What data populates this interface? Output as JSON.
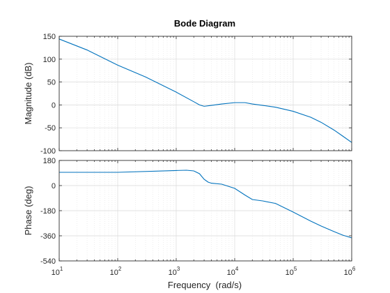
{
  "chart_data": {
    "type": "line",
    "title": "Bode Diagram",
    "xlabel": "Frequency  (rad/s)",
    "xscale": "log",
    "xlim": [
      10,
      1000000
    ],
    "xticks": [
      {
        "base": "10",
        "exp": "1"
      },
      {
        "base": "10",
        "exp": "2"
      },
      {
        "base": "10",
        "exp": "3"
      },
      {
        "base": "10",
        "exp": "4"
      },
      {
        "base": "10",
        "exp": "5"
      },
      {
        "base": "10",
        "exp": "6"
      }
    ],
    "grid": true,
    "subplots": [
      {
        "name": "magnitude",
        "ylabel": "Magnitude (dB)",
        "ylim": [
          -100,
          150
        ],
        "yticks": [
          150,
          100,
          50,
          0,
          -50,
          -100
        ],
        "series": [
          {
            "color": "#0072bd",
            "x": [
              10,
              30,
              100,
              300,
              1000,
              2000,
              2500,
              3000,
              4000,
              6000,
              10000,
              15000,
              20000,
              30000,
              50000,
              100000,
              200000,
              300000,
              500000,
              700000,
              1000000
            ],
            "y": [
              144,
              120,
              87,
              61,
              28,
              7,
              0,
              -3,
              -1,
              2,
              5,
              5,
              2,
              -1,
              -5,
              -14,
              -27,
              -38,
              -55,
              -68,
              -82
            ]
          }
        ]
      },
      {
        "name": "phase",
        "ylabel": "Phase (deg)",
        "ylim": [
          -540,
          180
        ],
        "yticks": [
          180,
          0,
          -180,
          -360,
          -540
        ],
        "series": [
          {
            "color": "#0072bd",
            "x": [
              10,
              100,
              1000,
              1500,
              2000,
              2500,
              3000,
              3500,
              4000,
              6000,
              10000,
              15000,
              20000,
              30000,
              50000,
              100000,
              200000,
              300000,
              500000,
              700000,
              1000000
            ],
            "y": [
              95,
              95,
              108,
              110,
              105,
              85,
              45,
              25,
              17,
              10,
              -20,
              -68,
              -100,
              -110,
              -128,
              -190,
              -255,
              -290,
              -330,
              -355,
              -375
            ]
          }
        ]
      }
    ]
  }
}
